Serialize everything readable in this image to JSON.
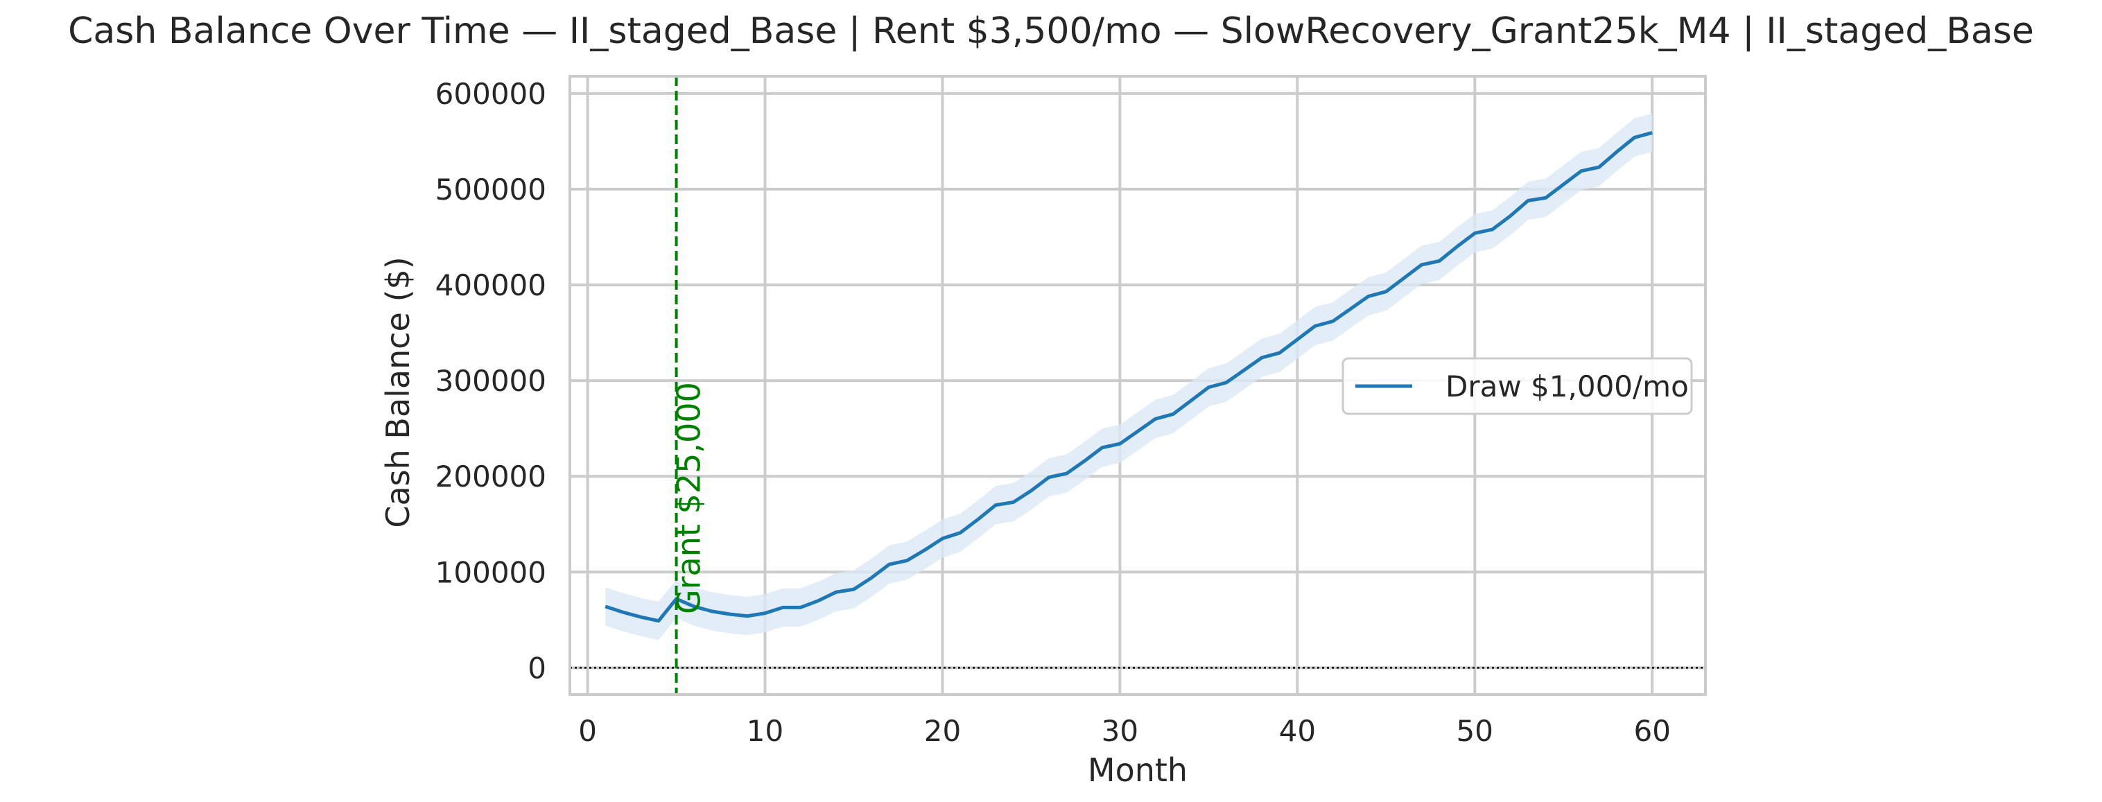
{
  "chart_data": {
    "type": "line",
    "title": "Cash Balance Over Time — II_staged_Base | Rent $3,500/mo — SlowRecovery_Grant25k_M4 | II_staged_Base",
    "xlabel": "Month",
    "ylabel": "Cash Balance ($)",
    "xlim": [
      -1,
      63
    ],
    "ylim": [
      -28000,
      618000
    ],
    "xticks": [
      0,
      10,
      20,
      30,
      40,
      50,
      60
    ],
    "yticks": [
      0,
      100000,
      200000,
      300000,
      400000,
      500000,
      600000
    ],
    "grid": true,
    "legend_position": "center-right",
    "reference_line": {
      "y": 0,
      "style": "dotted",
      "color": "#000000"
    },
    "annotation": {
      "x": 5,
      "label": "Grant $25,000",
      "color": "#008000",
      "style": "dashed"
    },
    "series": [
      {
        "name": "Draw $1,000/mo",
        "color": "#1f77b4",
        "band_color": "#dce9f6",
        "band_halfwidth": 20000,
        "x": [
          1,
          2,
          3,
          4,
          5,
          6,
          7,
          8,
          9,
          10,
          11,
          12,
          13,
          14,
          15,
          16,
          17,
          18,
          19,
          20,
          21,
          22,
          23,
          24,
          25,
          26,
          27,
          28,
          29,
          30,
          31,
          32,
          33,
          34,
          35,
          36,
          37,
          38,
          39,
          40,
          41,
          42,
          43,
          44,
          45,
          46,
          47,
          48,
          49,
          50,
          51,
          52,
          53,
          54,
          55,
          56,
          57,
          58,
          59,
          60
        ],
        "values": [
          64000,
          58000,
          53000,
          49000,
          72000,
          64000,
          59000,
          56000,
          54000,
          57000,
          63000,
          63000,
          70000,
          79000,
          82000,
          94000,
          108000,
          112000,
          123000,
          135000,
          141000,
          155000,
          170000,
          173000,
          185000,
          199000,
          203000,
          216000,
          230000,
          234000,
          247000,
          260000,
          265000,
          279000,
          293000,
          298000,
          311000,
          324000,
          329000,
          343000,
          357000,
          362000,
          375000,
          388000,
          393000,
          407000,
          421000,
          425000,
          440000,
          454000,
          458000,
          472000,
          488000,
          491000,
          505000,
          519000,
          523000,
          539000,
          554000,
          559000
        ]
      }
    ]
  }
}
